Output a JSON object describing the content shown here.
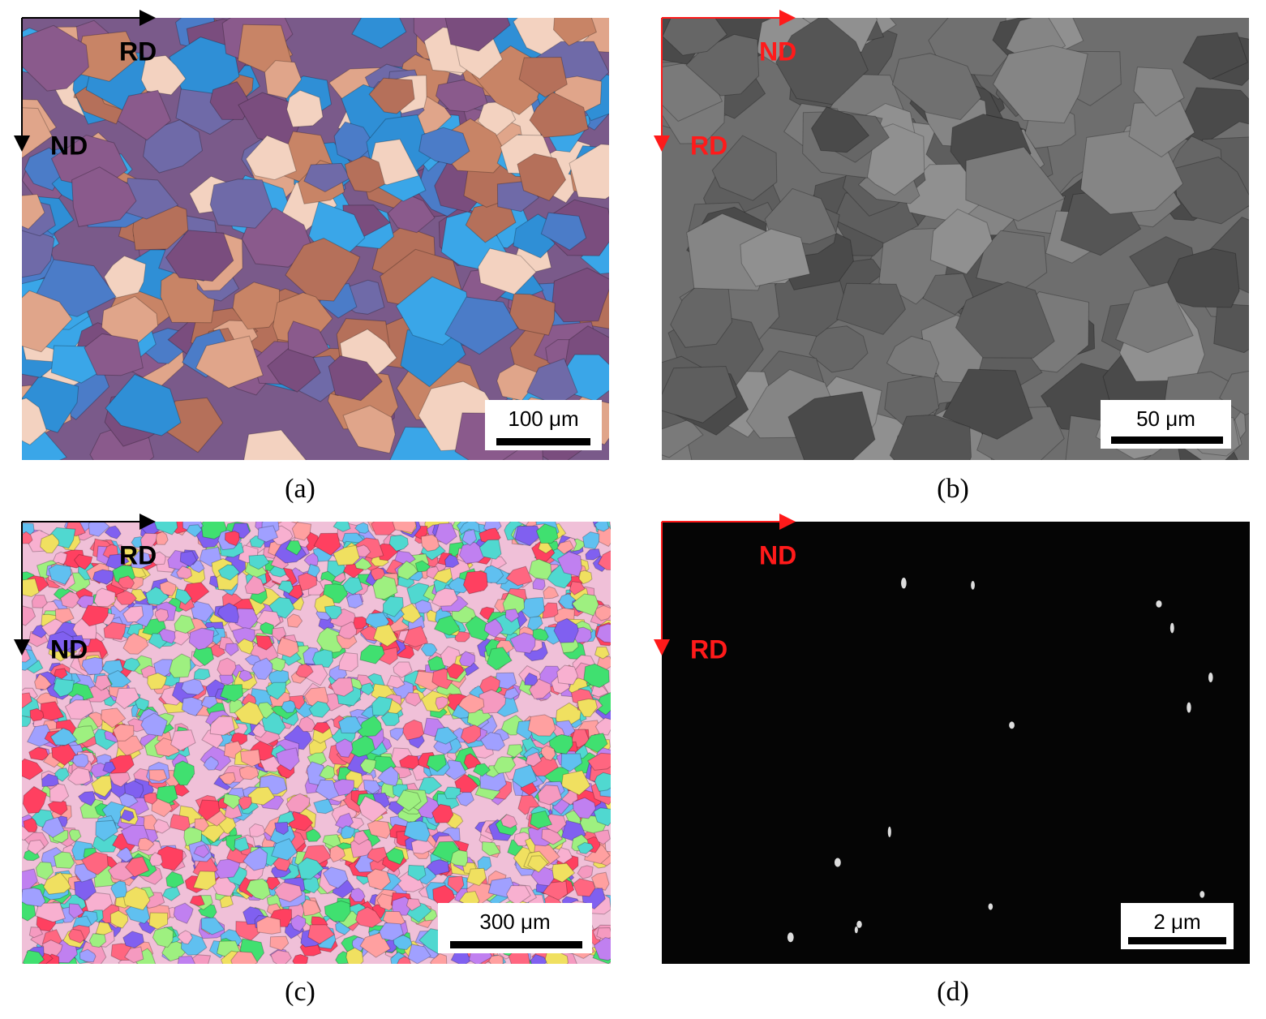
{
  "panels": [
    {
      "caption": "(a)",
      "horizontal_arrow": "RD",
      "vertical_arrow": "ND",
      "scale_bar": "100 μm"
    },
    {
      "caption": "(b)",
      "horizontal_arrow": "ND",
      "vertical_arrow": "RD",
      "scale_bar": "50 μm"
    },
    {
      "caption": "(c)",
      "horizontal_arrow": "RD",
      "vertical_arrow": "ND",
      "scale_bar": "300 μm"
    },
    {
      "caption": "(d)",
      "horizontal_arrow": "ND",
      "vertical_arrow": "RD",
      "scale_bar": "2 μm"
    }
  ]
}
